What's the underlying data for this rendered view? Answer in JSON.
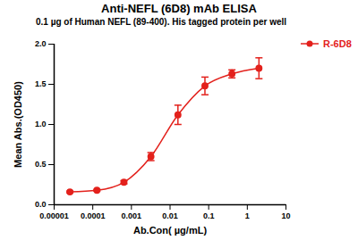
{
  "chart_data": {
    "type": "line",
    "title": "Anti-NEFL (6D8) mAb ELISA",
    "subtitle": "0.1 µg of Human NEFL (89-400). His tagged protein per well",
    "x_label": "Ab.Con( µg/mL)",
    "y_label": "Mean Abs.(OD450)",
    "x": [
      2.56e-05,
      0.000128,
      0.00064,
      0.0032,
      0.016,
      0.08,
      0.4,
      2
    ],
    "series": [
      {
        "name": "R-6D8",
        "color": "#e3211c",
        "marker": "circle",
        "line_style": "solid",
        "values": [
          0.16,
          0.18,
          0.28,
          0.6,
          1.12,
          1.48,
          1.63,
          1.7
        ],
        "error": [
          0.01,
          0.01,
          0.02,
          0.05,
          0.12,
          0.11,
          0.05,
          0.13
        ]
      }
    ],
    "log": "x",
    "xlim": [
      1e-05,
      10
    ],
    "xticks": [
      1e-05,
      0.0001,
      0.001,
      0.01,
      0.1,
      1,
      10
    ],
    "ylim": [
      0,
      2
    ],
    "yticks": [
      {
        "value": 0,
        "label": "0.0"
      },
      {
        "value": 0.5,
        "label": "0.5"
      },
      {
        "value": 1,
        "label": "1.0"
      },
      {
        "value": 1.5,
        "label": "1.5"
      },
      {
        "value": 2,
        "label": "2.0"
      }
    ],
    "grid": false,
    "legend": "right"
  }
}
